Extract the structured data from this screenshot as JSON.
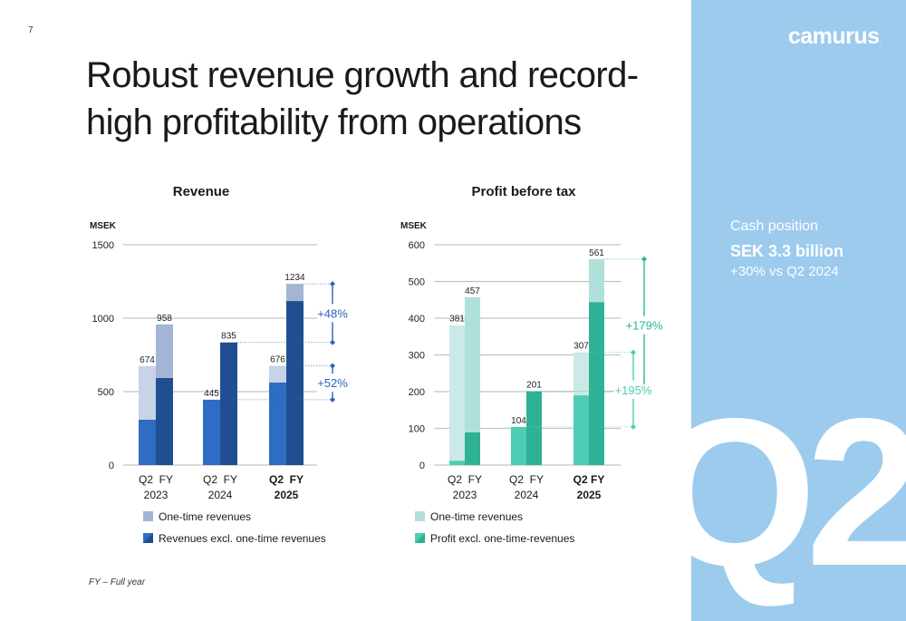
{
  "page_number": "7",
  "title": "Robust revenue growth and record-high profitability from operations",
  "footnote": "FY – Full year",
  "side_panel": {
    "logo": "camurus",
    "logo_mark": ".",
    "cash_label": "Cash position",
    "cash_value": "SEK 3.3 billion",
    "cash_change": "+30% vs Q2 2024",
    "big_text": "Q2"
  },
  "colors": {
    "revenue_onetime_q2": "#c7d3e6",
    "revenue_onetime_fy": "#a3b5d5",
    "revenue_core_q2": "#2f6cc4",
    "revenue_core_fy": "#1f4f91",
    "revenue_annotation": "#2c63b8",
    "profit_onetime_q2": "#cbe9e6",
    "profit_onetime_fy": "#b0e0da",
    "profit_core_q2": "#4ccdb4",
    "profit_core_fy": "#2fb196",
    "profit_annotation_179": "#2fb196",
    "profit_annotation_195": "#4ccdb4",
    "side_panel": "#9ccbee"
  },
  "chart_data": [
    {
      "type": "bar",
      "stacked": true,
      "title": "Revenue",
      "ylabel": "MSEK",
      "ylim": [
        0,
        1500
      ],
      "yticks": [
        0,
        500,
        1000,
        1500
      ],
      "grid": true,
      "categories": [
        {
          "line1": "Q2  FY",
          "line2": "2023",
          "bold": false
        },
        {
          "line1": "Q2  FY",
          "line2": "2024",
          "bold": false
        },
        {
          "line1": "Q2  FY",
          "line2": "2025",
          "bold": true
        }
      ],
      "bars": [
        {
          "group": 0,
          "period": "Q2",
          "total": 674,
          "label": "674",
          "core": 309,
          "onetime": 365
        },
        {
          "group": 0,
          "period": "FY",
          "total": 958,
          "label": "958",
          "core": 593,
          "onetime": 365
        },
        {
          "group": 1,
          "period": "Q2",
          "total": 445,
          "label": "445",
          "core": 445,
          "onetime": 0
        },
        {
          "group": 1,
          "period": "FY",
          "total": 835,
          "label": "835",
          "core": 835,
          "onetime": 0
        },
        {
          "group": 2,
          "period": "Q2",
          "total": 676,
          "label": "676",
          "core": 562,
          "onetime": 114
        },
        {
          "group": 2,
          "period": "FY",
          "total": 1234,
          "label": "1234",
          "core": 1117,
          "onetime": 117
        }
      ],
      "series": [
        {
          "name": "One-time revenues",
          "key": "onetime"
        },
        {
          "name": "Revenues excl. one-time revenues",
          "key": "core"
        }
      ],
      "legend": [
        "One-time revenues",
        "Revenues excl. one-time revenues"
      ],
      "legend_position": "bottom",
      "annotations": [
        {
          "label": "+48%",
          "from": 835,
          "to": 1234,
          "color_key": "revenue_annotation"
        },
        {
          "label": "+52%",
          "from": 445,
          "to": 676,
          "color_key": "revenue_annotation"
        }
      ]
    },
    {
      "type": "bar",
      "stacked": true,
      "title": "Profit before tax",
      "ylabel": "MSEK",
      "ylim": [
        0,
        600
      ],
      "yticks": [
        0,
        100,
        200,
        300,
        400,
        500,
        600
      ],
      "grid": true,
      "categories": [
        {
          "line1": "Q2  FY",
          "line2": "2023",
          "bold": false
        },
        {
          "line1": "Q2  FY",
          "line2": "2024",
          "bold": false
        },
        {
          "line1": "Q2 FY",
          "line2": "2025",
          "bold": true
        }
      ],
      "bars": [
        {
          "group": 0,
          "period": "Q2",
          "total": 381,
          "label": "381",
          "core": 12,
          "onetime": 369
        },
        {
          "group": 0,
          "period": "FY",
          "total": 457,
          "label": "457",
          "core": 89,
          "onetime": 368
        },
        {
          "group": 1,
          "period": "Q2",
          "total": 104,
          "label": "104",
          "core": 104,
          "onetime": 0
        },
        {
          "group": 1,
          "period": "FY",
          "total": 201,
          "label": "201",
          "core": 201,
          "onetime": 0
        },
        {
          "group": 2,
          "period": "Q2",
          "total": 307,
          "label": "307",
          "core": 190,
          "onetime": 117
        },
        {
          "group": 2,
          "period": "FY",
          "total": 561,
          "label": "561",
          "core": 444,
          "onetime": 117
        }
      ],
      "series": [
        {
          "name": "One-time revenues",
          "key": "onetime"
        },
        {
          "name": "Profit excl. one-time-revenues",
          "key": "core"
        }
      ],
      "legend": [
        "One-time revenues",
        "Profit excl. one-time-revenues"
      ],
      "legend_position": "bottom",
      "annotations": [
        {
          "label": "+179%",
          "from": 201,
          "to": 561,
          "color_key": "profit_annotation_179"
        },
        {
          "label": "+195%",
          "from": 104,
          "to": 307,
          "color_key": "profit_annotation_195"
        }
      ]
    }
  ]
}
